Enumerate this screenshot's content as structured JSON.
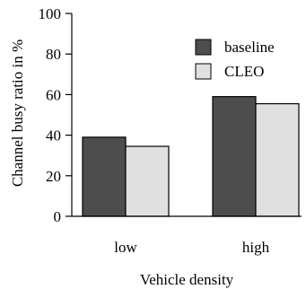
{
  "chart_data": {
    "type": "bar",
    "xlabel": "Vehicle density",
    "ylabel": "Channel busy ratio in %",
    "categories": [
      "low",
      "high"
    ],
    "ylim": [
      0,
      100
    ],
    "yticks": [
      0,
      20,
      40,
      60,
      80,
      100
    ],
    "grid": false,
    "legend_position": "top-right",
    "series": [
      {
        "name": "baseline",
        "values": [
          39,
          59
        ],
        "color": "#4d4d4d"
      },
      {
        "name": "CLEO",
        "values": [
          34.5,
          55.5
        ],
        "color": "#e0e0e0"
      }
    ]
  }
}
